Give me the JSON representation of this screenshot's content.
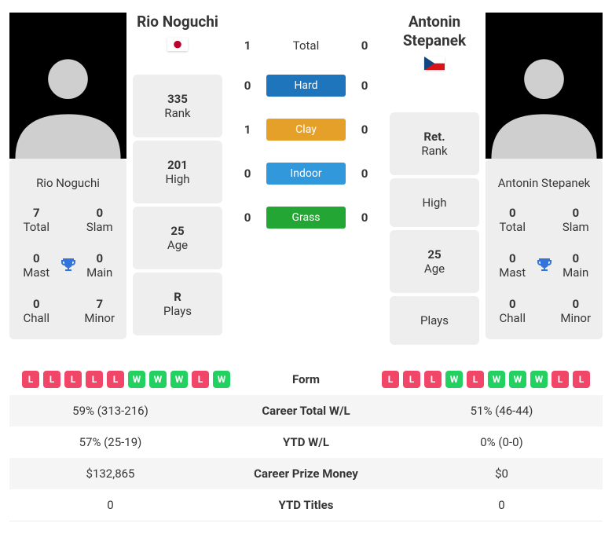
{
  "colors": {
    "win": "#23d160",
    "loss": "#f14668",
    "trophy": "#3273dc",
    "alt_row": "#f5f5f5",
    "surf_total_text": "#363636",
    "surf_hard": "#1e75bc",
    "surf_clay": "#e5a02a",
    "surf_indoor": "#3298dc",
    "surf_grass": "#23a634"
  },
  "h2h": {
    "rows": [
      {
        "left": "1",
        "label": "Total",
        "right": "0",
        "label_is_surface": false
      },
      {
        "left": "0",
        "label": "Hard",
        "right": "0",
        "label_is_surface": true,
        "color_key": "surf_hard"
      },
      {
        "left": "1",
        "label": "Clay",
        "right": "0",
        "label_is_surface": true,
        "color_key": "surf_clay"
      },
      {
        "left": "0",
        "label": "Indoor",
        "right": "0",
        "label_is_surface": true,
        "color_key": "surf_indoor"
      },
      {
        "left": "0",
        "label": "Grass",
        "right": "0",
        "label_is_surface": true,
        "color_key": "surf_grass"
      }
    ]
  },
  "players": {
    "left": {
      "name": "Rio Noguchi",
      "flag": "jp",
      "card": {
        "total": {
          "value": "7",
          "label": "Total"
        },
        "slam": {
          "value": "0",
          "label": "Slam"
        },
        "mast": {
          "value": "0",
          "label": "Mast"
        },
        "main": {
          "value": "0",
          "label": "Main"
        },
        "chall": {
          "value": "0",
          "label": "Chall"
        },
        "minor": {
          "value": "7",
          "label": "Minor"
        }
      },
      "stats": {
        "rank": {
          "value": "335",
          "label": "Rank"
        },
        "high": {
          "value": "201",
          "label": "High"
        },
        "age": {
          "value": "25",
          "label": "Age"
        },
        "plays": {
          "value": "R",
          "label": "Plays"
        }
      },
      "form": [
        "L",
        "L",
        "L",
        "L",
        "L",
        "W",
        "W",
        "W",
        "L",
        "W"
      ]
    },
    "right": {
      "name": "Antonin Stepanek",
      "flag": "cz",
      "card": {
        "total": {
          "value": "0",
          "label": "Total"
        },
        "slam": {
          "value": "0",
          "label": "Slam"
        },
        "mast": {
          "value": "0",
          "label": "Mast"
        },
        "main": {
          "value": "0",
          "label": "Main"
        },
        "chall": {
          "value": "0",
          "label": "Chall"
        },
        "minor": {
          "value": "0",
          "label": "Minor"
        }
      },
      "stats": {
        "rank": {
          "value": "Ret.",
          "label": "Rank"
        },
        "high": {
          "value": "",
          "label": "High"
        },
        "age": {
          "value": "25",
          "label": "Age"
        },
        "plays": {
          "value": "",
          "label": "Plays"
        }
      },
      "form": [
        "L",
        "L",
        "L",
        "W",
        "L",
        "W",
        "W",
        "W",
        "L",
        "L"
      ]
    }
  },
  "table": {
    "rows": [
      {
        "label": "Form",
        "left": "",
        "right": "",
        "is_form": true
      },
      {
        "label": "Career Total W/L",
        "left": "59% (313-216)",
        "right": "51% (46-44)"
      },
      {
        "label": "YTD W/L",
        "left": "57% (25-19)",
        "right": "0% (0-0)"
      },
      {
        "label": "Career Prize Money",
        "left": "$132,865",
        "right": "$0"
      },
      {
        "label": "YTD Titles",
        "left": "0",
        "right": "0"
      }
    ]
  }
}
